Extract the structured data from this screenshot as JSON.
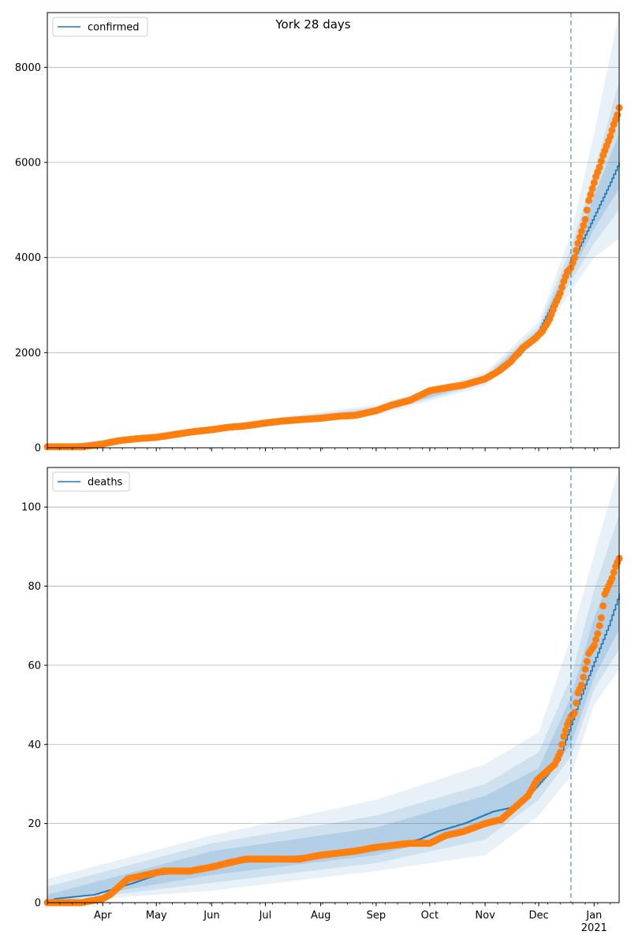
{
  "figure": {
    "title": "York 28 days"
  },
  "chart_data": [
    {
      "type": "line",
      "legend": {
        "label": "confirmed",
        "placement": "upper-left"
      },
      "ylim": [
        0,
        9150
      ],
      "yticks": [
        0,
        2000,
        4000,
        6000,
        8000
      ],
      "grid": "y",
      "forecast_start": "2020-12-19",
      "series": [
        {
          "name": "confirmed",
          "role": "model-median",
          "color": "#1f77b4",
          "x": [
            "2020-03-01",
            "2020-03-15",
            "2020-04-01",
            "2020-04-15",
            "2020-05-01",
            "2020-05-15",
            "2020-06-01",
            "2020-06-15",
            "2020-07-01",
            "2020-07-15",
            "2020-08-01",
            "2020-08-15",
            "2020-09-01",
            "2020-09-15",
            "2020-10-01",
            "2020-10-15",
            "2020-11-01",
            "2020-11-10",
            "2020-11-20",
            "2020-11-30",
            "2020-12-07",
            "2020-12-14",
            "2020-12-19",
            "2020-12-26",
            "2021-01-02",
            "2021-01-09",
            "2021-01-15"
          ],
          "y": [
            0,
            10,
            80,
            170,
            230,
            300,
            380,
            440,
            520,
            580,
            630,
            680,
            780,
            950,
            1170,
            1300,
            1430,
            1600,
            1950,
            2400,
            2900,
            3450,
            3850,
            4400,
            4950,
            5500,
            6000
          ]
        },
        {
          "name": "observed",
          "role": "observed",
          "color": "#ff7f0e",
          "x": [
            "2020-03-01",
            "2020-03-10",
            "2020-03-20",
            "2020-03-25",
            "2020-04-01",
            "2020-04-10",
            "2020-04-20",
            "2020-05-01",
            "2020-05-10",
            "2020-05-20",
            "2020-06-01",
            "2020-06-10",
            "2020-06-20",
            "2020-07-01",
            "2020-07-10",
            "2020-07-20",
            "2020-08-01",
            "2020-08-10",
            "2020-08-20",
            "2020-09-01",
            "2020-09-10",
            "2020-09-20",
            "2020-10-01",
            "2020-10-10",
            "2020-10-20",
            "2020-11-01",
            "2020-11-08",
            "2020-11-15",
            "2020-11-22",
            "2020-11-29",
            "2020-12-03",
            "2020-12-07",
            "2020-12-10",
            "2020-12-13",
            "2020-12-15",
            "2020-12-17",
            "2020-12-19",
            "2020-12-21",
            "2020-12-23",
            "2020-12-25",
            "2020-12-27",
            "2020-12-29",
            "2020-12-31",
            "2021-01-02",
            "2021-01-04",
            "2021-01-06",
            "2021-01-08",
            "2021-01-10",
            "2021-01-12",
            "2021-01-14",
            "2021-01-15"
          ],
          "y": [
            20,
            20,
            20,
            40,
            80,
            150,
            190,
            220,
            270,
            330,
            380,
            430,
            460,
            520,
            560,
            590,
            620,
            660,
            680,
            780,
            900,
            1000,
            1200,
            1260,
            1320,
            1450,
            1600,
            1800,
            2100,
            2300,
            2450,
            2700,
            3000,
            3250,
            3500,
            3700,
            3780,
            4000,
            4300,
            4550,
            4800,
            5200,
            5450,
            5700,
            5900,
            6150,
            6350,
            6550,
            6800,
            7000,
            7150
          ]
        }
      ],
      "bands": [
        {
          "level": "outer",
          "x": [
            "2020-03-01",
            "2020-06-01",
            "2020-09-01",
            "2020-11-01",
            "2020-12-01",
            "2020-12-19",
            "2021-01-01",
            "2021-01-15"
          ],
          "lower": [
            0,
            330,
            680,
            1300,
            2250,
            3300,
            4000,
            4400
          ],
          "upper": [
            30,
            460,
            900,
            1580,
            2650,
            4500,
            6600,
            9150
          ]
        },
        {
          "level": "middle",
          "x": [
            "2020-03-01",
            "2020-06-01",
            "2020-09-01",
            "2020-11-01",
            "2020-12-01",
            "2020-12-19",
            "2021-01-01",
            "2021-01-15"
          ],
          "lower": [
            0,
            350,
            720,
            1350,
            2350,
            3500,
            4300,
            5000
          ],
          "upper": [
            20,
            430,
            860,
            1520,
            2550,
            4200,
            5800,
            7700
          ]
        },
        {
          "level": "inner",
          "x": [
            "2020-03-01",
            "2020-06-01",
            "2020-09-01",
            "2020-11-01",
            "2020-12-01",
            "2020-12-19",
            "2021-01-01",
            "2021-01-15"
          ],
          "lower": [
            0,
            365,
            750,
            1390,
            2420,
            3650,
            4600,
            5450
          ],
          "upper": [
            12,
            410,
            820,
            1480,
            2480,
            4000,
            5300,
            6600
          ]
        }
      ]
    },
    {
      "type": "line",
      "legend": {
        "label": "deaths",
        "placement": "upper-left"
      },
      "ylim": [
        0,
        110
      ],
      "yticks": [
        0,
        20,
        40,
        60,
        80,
        100
      ],
      "grid": "y",
      "forecast_start": "2020-12-19",
      "series": [
        {
          "name": "deaths",
          "role": "model-median",
          "color": "#1f77b4",
          "x": [
            "2020-03-01",
            "2020-03-05",
            "2020-03-27",
            "2020-04-18",
            "2020-05-01",
            "2020-05-20",
            "2020-06-05",
            "2020-06-15",
            "2020-07-01",
            "2020-07-25",
            "2020-08-20",
            "2020-09-05",
            "2020-09-25",
            "2020-10-05",
            "2020-10-20",
            "2020-11-05",
            "2020-11-15",
            "2020-11-25",
            "2020-12-05",
            "2020-12-12",
            "2020-12-19",
            "2020-12-26",
            "2021-01-02",
            "2021-01-09",
            "2021-01-15"
          ],
          "y": [
            0,
            1,
            2,
            5,
            7,
            8,
            9,
            10,
            11,
            12,
            13,
            14,
            16,
            18,
            20,
            23,
            24,
            27,
            32,
            36,
            45,
            54,
            62,
            70,
            78
          ]
        },
        {
          "name": "observed",
          "role": "observed",
          "color": "#ff7f0e",
          "x": [
            "2020-03-01",
            "2020-03-20",
            "2020-04-01",
            "2020-04-05",
            "2020-04-10",
            "2020-04-15",
            "2020-04-25",
            "2020-05-05",
            "2020-05-20",
            "2020-06-01",
            "2020-06-10",
            "2020-06-20",
            "2020-07-20",
            "2020-08-01",
            "2020-08-20",
            "2020-09-01",
            "2020-09-20",
            "2020-10-01",
            "2020-10-10",
            "2020-10-20",
            "2020-11-01",
            "2020-11-10",
            "2020-11-15",
            "2020-11-20",
            "2020-11-25",
            "2020-11-30",
            "2020-12-05",
            "2020-12-10",
            "2020-12-13",
            "2020-12-15",
            "2020-12-17",
            "2020-12-19",
            "2020-12-21",
            "2020-12-23",
            "2020-12-25",
            "2020-12-27",
            "2020-12-29",
            "2021-01-01",
            "2021-01-03",
            "2021-01-05",
            "2021-01-07",
            "2021-01-09",
            "2021-01-11",
            "2021-01-13",
            "2021-01-15"
          ],
          "y": [
            0,
            0,
            1,
            2,
            4,
            6,
            7,
            8,
            8,
            9,
            10,
            11,
            11,
            12,
            13,
            14,
            15,
            15,
            17,
            18,
            20,
            21,
            23,
            25,
            27,
            31,
            33,
            35,
            38,
            42,
            45,
            47,
            48,
            53,
            55,
            59,
            63,
            65,
            68,
            72,
            78,
            80,
            82,
            85,
            87
          ]
        }
      ],
      "bands": [
        {
          "level": "outer",
          "x": [
            "2020-03-01",
            "2020-06-01",
            "2020-09-01",
            "2020-11-01",
            "2020-12-01",
            "2020-12-19",
            "2021-01-01",
            "2021-01-15"
          ],
          "lower": [
            0,
            3,
            8,
            12,
            22,
            32,
            50,
            59
          ],
          "upper": [
            6,
            17,
            26,
            35,
            43,
            67,
            88,
            110
          ]
        },
        {
          "level": "middle",
          "x": [
            "2020-03-01",
            "2020-06-01",
            "2020-09-01",
            "2020-11-01",
            "2020-12-01",
            "2020-12-19",
            "2021-01-01",
            "2021-01-15"
          ],
          "lower": [
            0,
            5,
            10,
            16,
            26,
            37,
            54,
            64
          ],
          "upper": [
            4,
            15,
            22,
            30,
            38,
            57,
            79,
            98
          ]
        },
        {
          "level": "inner",
          "x": [
            "2020-03-01",
            "2020-06-01",
            "2020-09-01",
            "2020-11-01",
            "2020-12-01",
            "2020-12-19",
            "2021-01-01",
            "2021-01-15"
          ],
          "lower": [
            0,
            7,
            12,
            19,
            29,
            40,
            57,
            69
          ],
          "upper": [
            2,
            13,
            19,
            27,
            34,
            52,
            72,
            88
          ]
        }
      ]
    }
  ],
  "x_axis": {
    "range": [
      "2020-03-01",
      "2021-01-15"
    ],
    "ticks": [
      {
        "date": "2020-04-01",
        "label": "Apr"
      },
      {
        "date": "2020-05-01",
        "label": "May"
      },
      {
        "date": "2020-06-01",
        "label": "Jun"
      },
      {
        "date": "2020-07-01",
        "label": "Jul"
      },
      {
        "date": "2020-08-01",
        "label": "Aug"
      },
      {
        "date": "2020-09-01",
        "label": "Sep"
      },
      {
        "date": "2020-10-01",
        "label": "Oct"
      },
      {
        "date": "2020-11-01",
        "label": "Nov"
      },
      {
        "date": "2020-12-01",
        "label": "Dec"
      },
      {
        "date": "2021-01-01",
        "label": "Jan",
        "sublabel": "2021"
      }
    ]
  }
}
